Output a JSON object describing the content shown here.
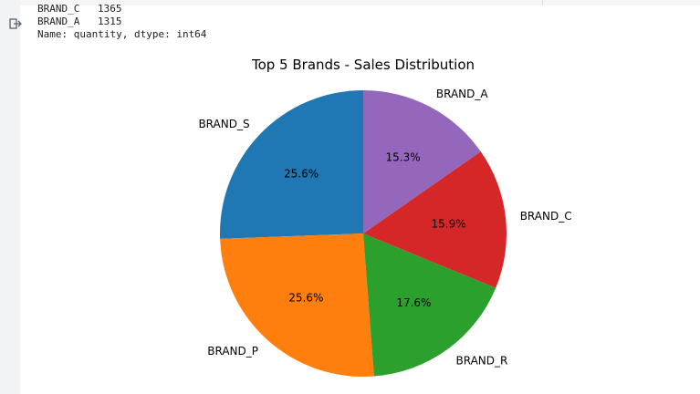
{
  "output": {
    "lines": [
      {
        "name": "BRAND_C",
        "value": "1365"
      },
      {
        "name": "BRAND_A",
        "value": "1315"
      }
    ],
    "footer": "Name: quantity, dtype: int64"
  },
  "icons": {
    "output_icon": "output-redirect-icon"
  },
  "chart_data": {
    "type": "pie",
    "title": "Top 5 Brands - Sales Distribution",
    "labels": [
      "BRAND_S",
      "BRAND_P",
      "BRAND_R",
      "BRAND_C",
      "BRAND_A"
    ],
    "values": [
      25.6,
      25.6,
      17.6,
      15.9,
      15.3
    ],
    "percent_labels": [
      "25.6%",
      "25.6%",
      "17.6%",
      "15.9%",
      "15.3%"
    ],
    "colors": [
      "#1f77b4",
      "#ff7f0e",
      "#2ca02c",
      "#d62728",
      "#9467bd"
    ],
    "start_angle_deg": 90,
    "direction": "counterclockwise"
  }
}
